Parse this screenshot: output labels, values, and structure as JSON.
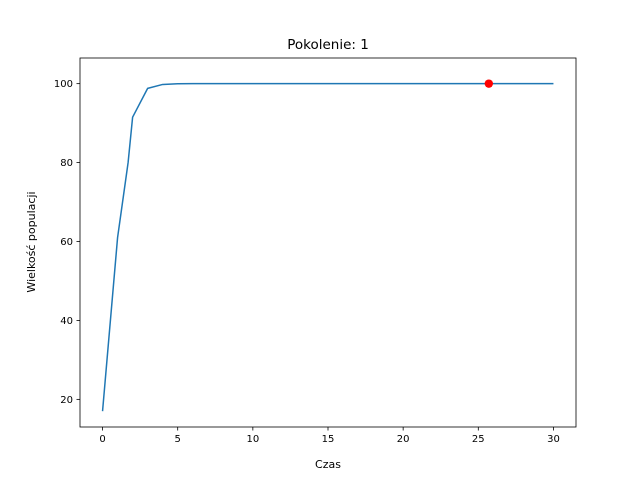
{
  "chart_data": {
    "type": "line",
    "title": "Pokolenie: 1",
    "xlabel": "Czas",
    "ylabel": "Wielkość populacji",
    "xlim": [
      -1.5,
      31.5
    ],
    "ylim": [
      13,
      106.5
    ],
    "xticks": [
      0,
      5,
      10,
      15,
      20,
      25,
      30
    ],
    "yticks": [
      20,
      40,
      60,
      80,
      100
    ],
    "grid": false,
    "line_color": "#1f77b4",
    "marker_color": "#ff0000",
    "series": [
      {
        "x": [
          0,
          1,
          1.7,
          2,
          3,
          4,
          5,
          6,
          7,
          8,
          9,
          10,
          11,
          12,
          13,
          14,
          15,
          16,
          17,
          18,
          19,
          20,
          21,
          22,
          23,
          24,
          25,
          26,
          27,
          28,
          29,
          30
        ],
        "values": [
          17,
          61,
          80,
          91.5,
          98.8,
          99.8,
          99.98,
          100,
          100,
          100,
          100,
          100,
          100,
          100,
          100,
          100,
          100,
          100,
          100,
          100,
          100,
          100,
          100,
          100,
          100,
          100,
          100,
          100,
          100,
          100,
          100,
          100
        ]
      }
    ],
    "highlight_point": {
      "x": 25.7,
      "y": 100
    }
  }
}
